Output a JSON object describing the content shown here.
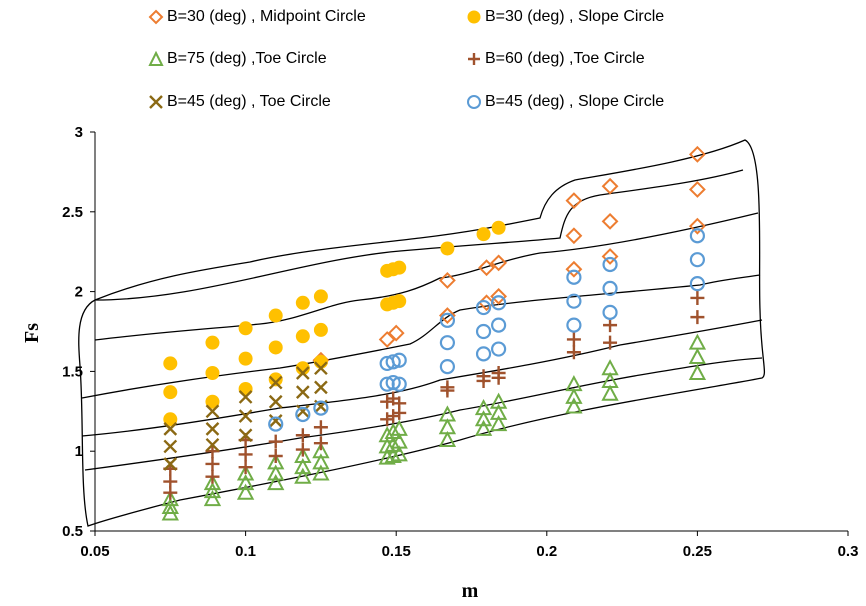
{
  "chart_data": {
    "type": "scatter",
    "title": "",
    "xlabel": "m",
    "ylabel": "Fs",
    "xlim": [
      0.05,
      0.3
    ],
    "ylim": [
      0.5,
      3
    ],
    "x_ticks": [
      "0.05",
      "0.1",
      "0.15",
      "0.2",
      "0.25",
      "0.3"
    ],
    "y_ticks": [
      "0.5",
      "1",
      "1.5",
      "2",
      "2.5",
      "3"
    ],
    "grid": false,
    "legend_position": "top",
    "series": [
      {
        "name": "B=30 (deg) , Midpoint Circle",
        "marker": "diamond-open",
        "color": "#ED7D31",
        "points": [
          [
            0.147,
            1.7
          ],
          [
            0.15,
            1.74
          ],
          [
            0.167,
            1.85
          ],
          [
            0.167,
            2.07
          ],
          [
            0.18,
            1.93
          ],
          [
            0.18,
            2.15
          ],
          [
            0.184,
            1.97
          ],
          [
            0.184,
            2.18
          ],
          [
            0.209,
            2.14
          ],
          [
            0.209,
            2.35
          ],
          [
            0.209,
            2.57
          ],
          [
            0.221,
            2.22
          ],
          [
            0.221,
            2.44
          ],
          [
            0.221,
            2.66
          ],
          [
            0.25,
            2.41
          ],
          [
            0.25,
            2.64
          ],
          [
            0.25,
            2.86
          ],
          [
            0.125,
            1.57
          ]
        ]
      },
      {
        "name": "B=30 (deg) , Slope Circle",
        "marker": "circle-filled",
        "color": "#FFC000",
        "points": [
          [
            0.075,
            1.2
          ],
          [
            0.075,
            1.37
          ],
          [
            0.075,
            1.55
          ],
          [
            0.089,
            1.31
          ],
          [
            0.089,
            1.49
          ],
          [
            0.089,
            1.68
          ],
          [
            0.1,
            1.39
          ],
          [
            0.1,
            1.58
          ],
          [
            0.1,
            1.77
          ],
          [
            0.11,
            1.45
          ],
          [
            0.11,
            1.65
          ],
          [
            0.11,
            1.85
          ],
          [
            0.119,
            1.52
          ],
          [
            0.119,
            1.72
          ],
          [
            0.119,
            1.93
          ],
          [
            0.125,
            1.56
          ],
          [
            0.125,
            1.76
          ],
          [
            0.125,
            1.97
          ],
          [
            0.147,
            1.92
          ],
          [
            0.147,
            2.13
          ],
          [
            0.149,
            1.93
          ],
          [
            0.149,
            2.14
          ],
          [
            0.151,
            1.94
          ],
          [
            0.151,
            2.15
          ],
          [
            0.167,
            2.27
          ],
          [
            0.179,
            2.36
          ],
          [
            0.184,
            2.4
          ]
        ]
      },
      {
        "name": "B=75 (deg) ,Toe Circle",
        "marker": "triangle-open",
        "color": "#70AD47",
        "points": [
          [
            0.075,
            0.61
          ],
          [
            0.075,
            0.65
          ],
          [
            0.075,
            0.7
          ],
          [
            0.089,
            0.7
          ],
          [
            0.089,
            0.75
          ],
          [
            0.089,
            0.8
          ],
          [
            0.1,
            0.74
          ],
          [
            0.1,
            0.8
          ],
          [
            0.1,
            0.86
          ],
          [
            0.11,
            0.8
          ],
          [
            0.11,
            0.86
          ],
          [
            0.11,
            0.93
          ],
          [
            0.119,
            0.84
          ],
          [
            0.119,
            0.9
          ],
          [
            0.119,
            0.97
          ],
          [
            0.125,
            0.86
          ],
          [
            0.125,
            0.93
          ],
          [
            0.125,
            1.0
          ],
          [
            0.147,
            0.96
          ],
          [
            0.147,
            1.03
          ],
          [
            0.147,
            1.1
          ],
          [
            0.149,
            0.97
          ],
          [
            0.149,
            1.04
          ],
          [
            0.149,
            1.12
          ],
          [
            0.151,
            0.98
          ],
          [
            0.151,
            1.06
          ],
          [
            0.151,
            1.14
          ],
          [
            0.167,
            1.07
          ],
          [
            0.167,
            1.15
          ],
          [
            0.167,
            1.23
          ],
          [
            0.179,
            1.14
          ],
          [
            0.179,
            1.2
          ],
          [
            0.179,
            1.27
          ],
          [
            0.184,
            1.17
          ],
          [
            0.184,
            1.24
          ],
          [
            0.184,
            1.31
          ],
          [
            0.209,
            1.28
          ],
          [
            0.209,
            1.34
          ],
          [
            0.209,
            1.42
          ],
          [
            0.221,
            1.36
          ],
          [
            0.221,
            1.44
          ],
          [
            0.221,
            1.52
          ],
          [
            0.25,
            1.49
          ],
          [
            0.25,
            1.59
          ],
          [
            0.25,
            1.68
          ]
        ]
      },
      {
        "name": "B=60 (deg) ,Toe Circle",
        "marker": "plus",
        "color": "#A0522D",
        "points": [
          [
            0.075,
            0.74
          ],
          [
            0.075,
            0.81
          ],
          [
            0.075,
            0.89
          ],
          [
            0.089,
            0.84
          ],
          [
            0.089,
            0.92
          ],
          [
            0.089,
            1.0
          ],
          [
            0.1,
            0.9
          ],
          [
            0.1,
            0.98
          ],
          [
            0.1,
            1.07
          ],
          [
            0.11,
            0.97
          ],
          [
            0.11,
            1.06
          ],
          [
            0.119,
            1.01
          ],
          [
            0.119,
            1.1
          ],
          [
            0.125,
            1.05
          ],
          [
            0.125,
            1.15
          ],
          [
            0.147,
            1.2
          ],
          [
            0.147,
            1.31
          ],
          [
            0.149,
            1.22
          ],
          [
            0.149,
            1.33
          ],
          [
            0.151,
            1.24
          ],
          [
            0.151,
            1.3
          ],
          [
            0.167,
            1.38
          ],
          [
            0.167,
            1.4
          ],
          [
            0.179,
            1.44
          ],
          [
            0.179,
            1.47
          ],
          [
            0.184,
            1.46
          ],
          [
            0.184,
            1.49
          ],
          [
            0.209,
            1.62
          ],
          [
            0.209,
            1.7
          ],
          [
            0.221,
            1.68
          ],
          [
            0.221,
            1.79
          ],
          [
            0.25,
            1.84
          ],
          [
            0.25,
            1.96
          ]
        ]
      },
      {
        "name": "B=45 (deg) , Toe Circle",
        "marker": "x",
        "color": "#8B6914",
        "points": [
          [
            0.075,
            0.92
          ],
          [
            0.075,
            1.03
          ],
          [
            0.075,
            1.14
          ],
          [
            0.089,
            1.04
          ],
          [
            0.089,
            1.14
          ],
          [
            0.089,
            1.25
          ],
          [
            0.1,
            1.1
          ],
          [
            0.1,
            1.22
          ],
          [
            0.1,
            1.34
          ],
          [
            0.11,
            1.19
          ],
          [
            0.11,
            1.31
          ],
          [
            0.11,
            1.43
          ],
          [
            0.119,
            1.25
          ],
          [
            0.119,
            1.37
          ],
          [
            0.119,
            1.49
          ],
          [
            0.125,
            1.28
          ],
          [
            0.125,
            1.4
          ],
          [
            0.125,
            1.52
          ]
        ]
      },
      {
        "name": "B=45 (deg) , Slope Circle",
        "marker": "circle-open",
        "color": "#5B9BD5",
        "points": [
          [
            0.11,
            1.17
          ],
          [
            0.119,
            1.23
          ],
          [
            0.125,
            1.27
          ],
          [
            0.147,
            1.42
          ],
          [
            0.147,
            1.55
          ],
          [
            0.149,
            1.43
          ],
          [
            0.149,
            1.56
          ],
          [
            0.151,
            1.42
          ],
          [
            0.151,
            1.57
          ],
          [
            0.167,
            1.53
          ],
          [
            0.167,
            1.68
          ],
          [
            0.167,
            1.82
          ],
          [
            0.179,
            1.61
          ],
          [
            0.179,
            1.75
          ],
          [
            0.179,
            1.9
          ],
          [
            0.184,
            1.64
          ],
          [
            0.184,
            1.79
          ],
          [
            0.184,
            1.93
          ],
          [
            0.209,
            1.79
          ],
          [
            0.209,
            1.94
          ],
          [
            0.209,
            2.09
          ],
          [
            0.221,
            1.87
          ],
          [
            0.221,
            2.02
          ],
          [
            0.221,
            2.17
          ],
          [
            0.25,
            2.05
          ],
          [
            0.25,
            2.2
          ],
          [
            0.25,
            2.35
          ]
        ]
      }
    ]
  }
}
